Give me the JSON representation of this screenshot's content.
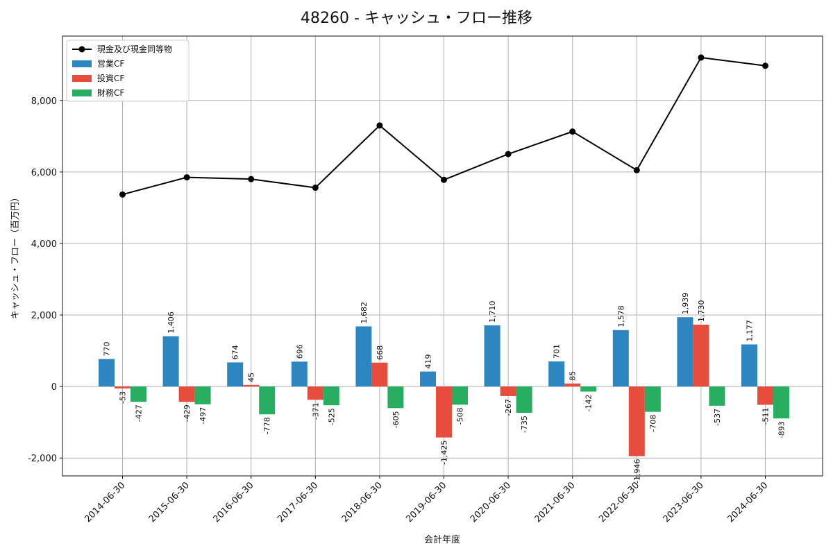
{
  "chart_data": {
    "type": "bar",
    "title": "48260 - キャッシュ・フロー推移",
    "xlabel": "会計年度",
    "ylabel": "キャッシュ・フロー（百万円）",
    "ylim": [
      -2500,
      9800
    ],
    "yticks": [
      -2000,
      0,
      2000,
      4000,
      6000,
      8000
    ],
    "ytick_labels": [
      "-2,000",
      "0",
      "2,000",
      "4,000",
      "6,000",
      "8,000"
    ],
    "grid": true,
    "legend_position": "top-left",
    "categories": [
      "2014-06-30",
      "2015-06-30",
      "2016-06-30",
      "2017-06-30",
      "2018-06-30",
      "2019-06-30",
      "2020-06-30",
      "2021-06-30",
      "2022-06-30",
      "2023-06-30",
      "2024-06-30"
    ],
    "series": [
      {
        "name": "営業CF",
        "kind": "bar",
        "color": "#2e86c1",
        "values": [
          770,
          1406,
          674,
          696,
          1682,
          419,
          1710,
          701,
          1578,
          1939,
          1177
        ],
        "labels": [
          "770",
          "1,406",
          "674",
          "696",
          "1,682",
          "419",
          "1,710",
          "701",
          "1,578",
          "1,939",
          "1,177"
        ]
      },
      {
        "name": "投資CF",
        "kind": "bar",
        "color": "#e74c3c",
        "values": [
          -53,
          -429,
          45,
          -371,
          668,
          -1425,
          -267,
          85,
          -1946,
          1730,
          -511
        ],
        "labels": [
          "-53",
          "-429",
          "45",
          "-371",
          "668",
          "-1,425",
          "-267",
          "85",
          "-1,946",
          "1,730",
          "-511"
        ]
      },
      {
        "name": "財務CF",
        "kind": "bar",
        "color": "#27ae60",
        "values": [
          -427,
          -497,
          -778,
          -525,
          -605,
          -508,
          -735,
          -142,
          -708,
          -537,
          -893
        ],
        "labels": [
          "-427",
          "-497",
          "-778",
          "-525",
          "-605",
          "-508",
          "-735",
          "-142",
          "-708",
          "-537",
          "-893"
        ]
      },
      {
        "name": "現金及び現金同等物",
        "kind": "line",
        "color": "#000000",
        "values": [
          5370,
          5850,
          5800,
          5560,
          7300,
          5780,
          6500,
          7130,
          6050,
          9200,
          8970
        ]
      }
    ]
  }
}
